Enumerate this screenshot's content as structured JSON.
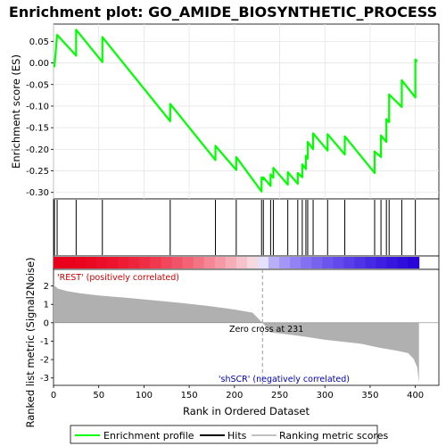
{
  "chart_data": {
    "type": "line",
    "title": "Enrichment plot: GO_AMIDE_BIOSYNTHETIC_PROCESS",
    "xlabel": "Rank in Ordered Dataset",
    "ylabel_top": "Enrichment score (ES)",
    "ylabel_bottom": "Ranked list metric (Signal2Noise)",
    "xlim": [
      0,
      426
    ],
    "es_ylim": [
      -0.315,
      0.09
    ],
    "metric_ylim": [
      -3.4,
      2.9
    ],
    "x_ticks": [
      0,
      50,
      100,
      150,
      200,
      250,
      300,
      350,
      400
    ],
    "x_tick_labels": [
      "0",
      "50",
      "100",
      "150",
      "200",
      "250",
      "300",
      "350",
      "400"
    ],
    "es_ticks": [
      0.05,
      0.0,
      -0.05,
      -0.1,
      -0.15,
      -0.2,
      -0.25,
      -0.3
    ],
    "es_tick_labels": [
      "0.05",
      "0.00",
      "-0.05",
      "-0.10",
      "-0.15",
      "-0.20",
      "-0.25",
      "-0.30"
    ],
    "metric_ticks": [
      2,
      1,
      0,
      -1,
      -2,
      -3
    ],
    "metric_tick_labels": [
      "2",
      "1",
      "0",
      "-1",
      "-2",
      "-3"
    ],
    "hits": [
      1,
      4,
      25,
      54,
      129,
      179,
      202,
      230,
      232,
      240,
      243,
      259,
      270,
      275,
      279,
      281,
      287,
      303,
      322,
      355,
      362,
      368,
      371,
      385,
      400
    ],
    "es_profile": {
      "x": [
        0,
        1,
        4,
        25,
        25,
        54,
        54,
        129,
        129,
        179,
        179,
        202,
        202,
        230,
        230,
        232,
        232,
        240,
        240,
        243,
        243,
        259,
        259,
        270,
        270,
        275,
        275,
        279,
        279,
        281,
        281,
        287,
        287,
        303,
        303,
        322,
        322,
        355,
        355,
        362,
        362,
        368,
        368,
        371,
        371,
        385,
        385,
        400,
        400,
        402
      ],
      "y": [
        -0.008,
        -0.008,
        0.065,
        0.017,
        0.077,
        0.002,
        0.06,
        -0.135,
        -0.095,
        -0.225,
        -0.192,
        -0.248,
        -0.218,
        -0.298,
        -0.265,
        -0.27,
        -0.265,
        -0.285,
        -0.258,
        -0.266,
        -0.243,
        -0.282,
        -0.253,
        -0.28,
        -0.255,
        -0.265,
        -0.235,
        -0.246,
        -0.215,
        -0.222,
        -0.183,
        -0.2,
        -0.163,
        -0.203,
        -0.165,
        -0.212,
        -0.17,
        -0.255,
        -0.205,
        -0.218,
        -0.168,
        -0.183,
        -0.13,
        -0.137,
        -0.073,
        -0.102,
        -0.04,
        -0.08,
        0.008,
        0.003
      ]
    },
    "zero_cross_rank": 231,
    "metric_curve": {
      "x": [
        0,
        5,
        15,
        30,
        50,
        80,
        110,
        140,
        170,
        200,
        220,
        231,
        240,
        260,
        280,
        300,
        320,
        340,
        360,
        380,
        392,
        398,
        402,
        404
      ],
      "y": [
        2.05,
        1.85,
        1.72,
        1.6,
        1.48,
        1.36,
        1.22,
        1.08,
        0.92,
        0.72,
        0.55,
        0.0,
        -0.52,
        -0.64,
        -0.77,
        -0.92,
        -1.03,
        -1.14,
        -1.35,
        -1.52,
        -1.65,
        -1.95,
        -2.4,
        -3.25
      ]
    },
    "gene_list_label_pos": "'REST' (positively correlated)",
    "gene_list_label_neg": "'shSCR' (negatively correlated)",
    "zero_cross_label": "Zero cross at 231",
    "legend_position": "bottom",
    "legend": [
      {
        "label": "Enrichment profile",
        "color": "#00ff00"
      },
      {
        "label": "Hits",
        "color": "#000000"
      },
      {
        "label": "Ranking metric scores",
        "color": "#c0c0c0"
      }
    ],
    "colors": {
      "profile": "#00ff00",
      "metric_fill": "#b0b0b0",
      "pos_red": "#e8001c",
      "neg_blue": "#2400d8",
      "pos_label": "#cc0000",
      "neg_label": "#0000b4"
    }
  }
}
